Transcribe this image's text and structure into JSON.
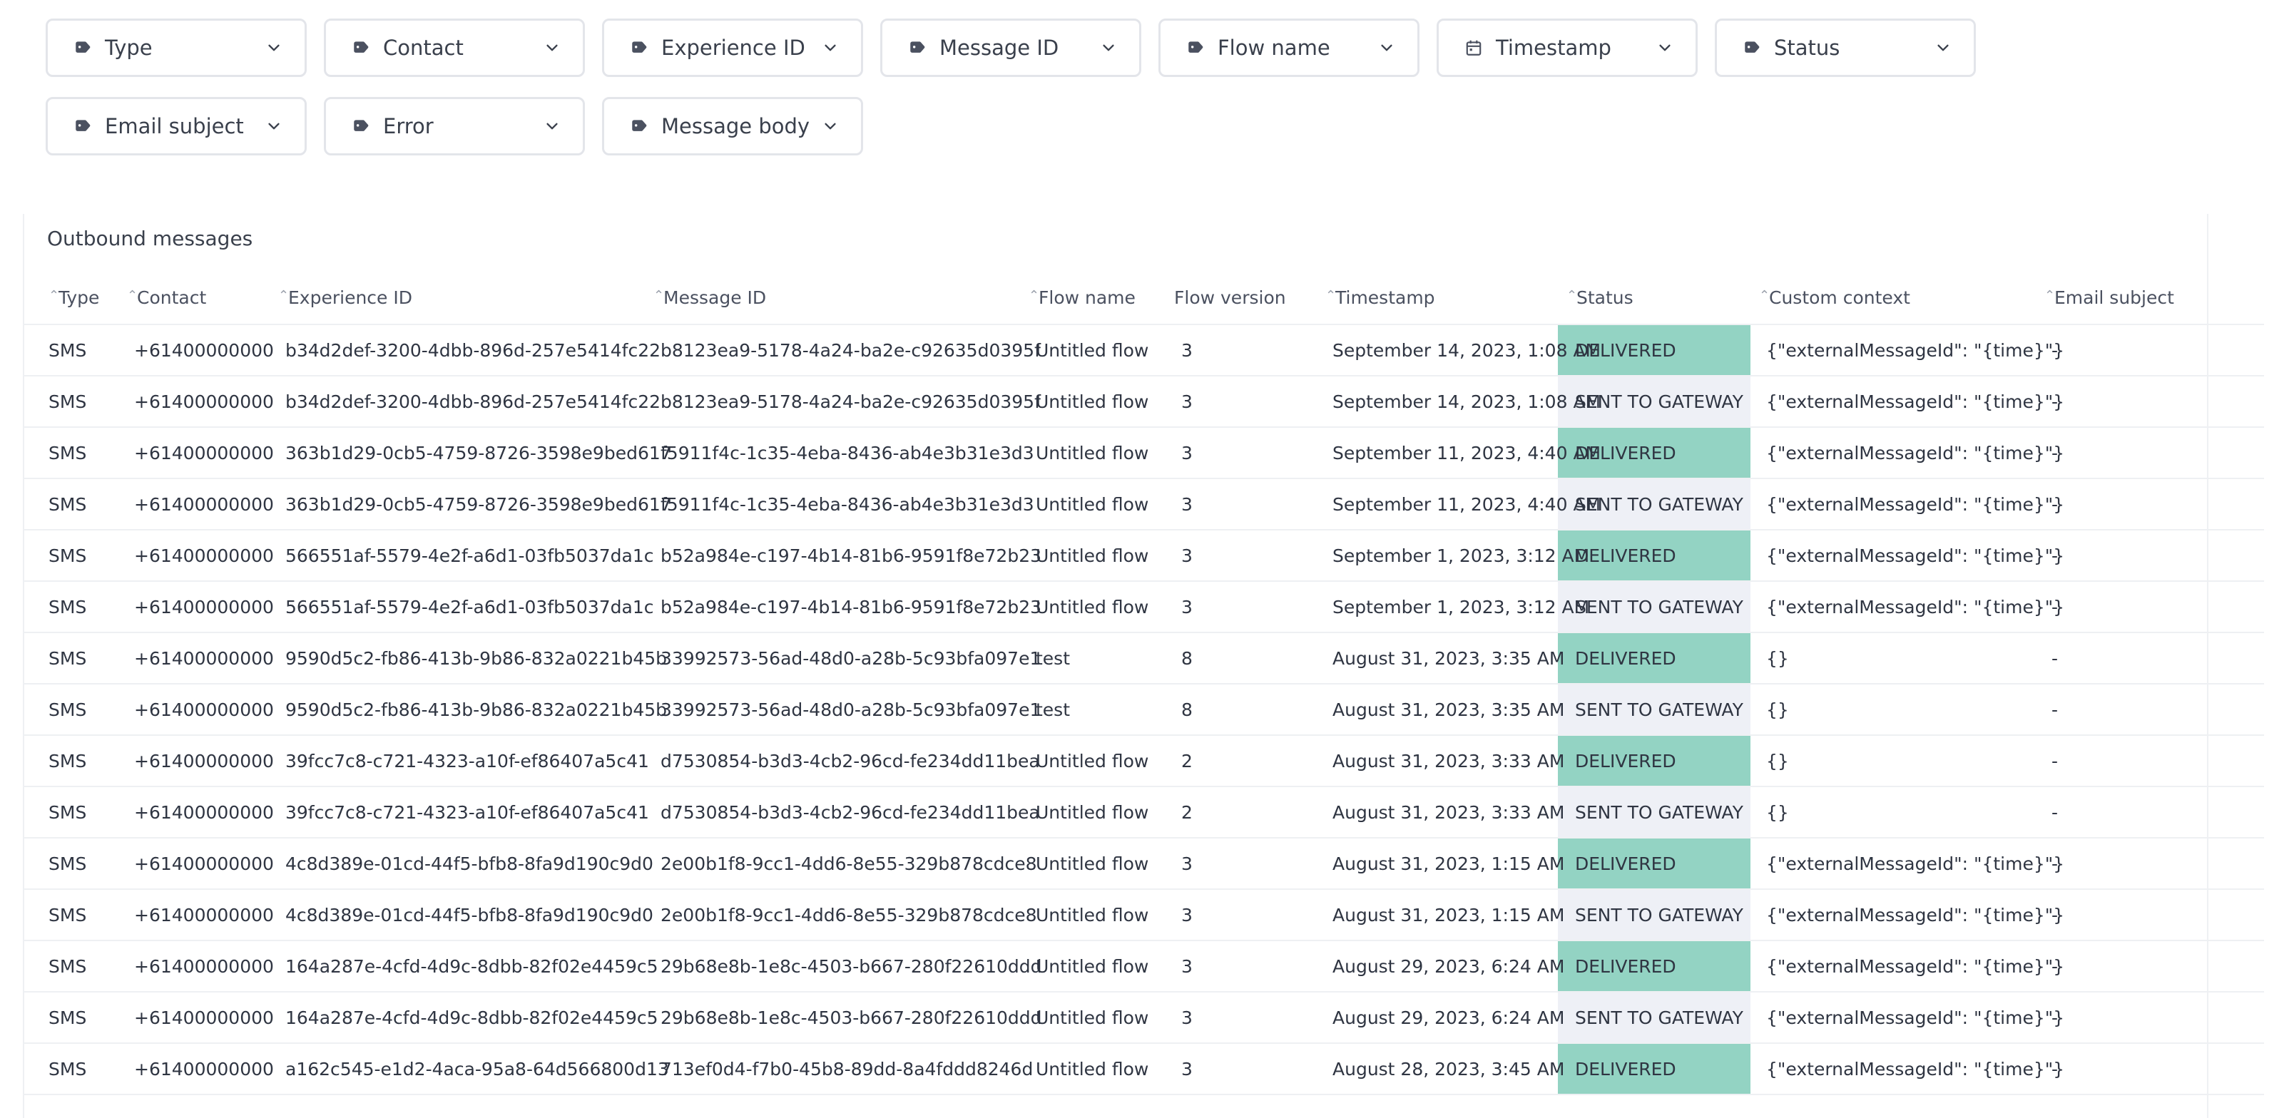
{
  "filters": {
    "row1": [
      {
        "label": "Type",
        "icon": "tag-icon"
      },
      {
        "label": "Contact",
        "icon": "tag-icon"
      },
      {
        "label": "Experience ID",
        "icon": "tag-icon"
      },
      {
        "label": "Message ID",
        "icon": "tag-icon"
      },
      {
        "label": "Flow name",
        "icon": "tag-icon"
      },
      {
        "label": "Timestamp",
        "icon": "calendar-icon"
      },
      {
        "label": "Status",
        "icon": "tag-icon"
      }
    ],
    "row2": [
      {
        "label": "Email subject",
        "icon": "tag-icon"
      },
      {
        "label": "Error",
        "icon": "tag-icon"
      },
      {
        "label": "Message body",
        "icon": "tag-icon"
      }
    ]
  },
  "table": {
    "title": "Outbound messages",
    "columns": [
      "Type",
      "Contact",
      "Experience ID",
      "Message ID",
      "Flow name",
      "Flow version",
      "Timestamp",
      "Status",
      "Custom context",
      "Email subject"
    ],
    "sortable": [
      true,
      true,
      true,
      true,
      true,
      false,
      true,
      true,
      true,
      true
    ],
    "rows": [
      [
        "SMS",
        "+61400000000",
        "b34d2def-3200-4dbb-896d-257e5414fc22",
        "b8123ea9-5178-4a24-ba2e-c92635d0395f",
        "Untitled flow",
        "3",
        "September 14, 2023, 1:08 AM",
        "DELIVERED",
        "{\"externalMessageId\": \"{time}\"}",
        "-"
      ],
      [
        "SMS",
        "+61400000000",
        "b34d2def-3200-4dbb-896d-257e5414fc22",
        "b8123ea9-5178-4a24-ba2e-c92635d0395f",
        "Untitled flow",
        "3",
        "September 14, 2023, 1:08 AM",
        "SENT TO GATEWAY",
        "{\"externalMessageId\": \"{time}\"}",
        "-"
      ],
      [
        "SMS",
        "+61400000000",
        "363b1d29-0cb5-4759-8726-3598e9bed617",
        "f5911f4c-1c35-4eba-8436-ab4e3b31e3d3",
        "Untitled flow",
        "3",
        "September 11, 2023, 4:40 AM",
        "DELIVERED",
        "{\"externalMessageId\": \"{time}\"}",
        "-"
      ],
      [
        "SMS",
        "+61400000000",
        "363b1d29-0cb5-4759-8726-3598e9bed617",
        "f5911f4c-1c35-4eba-8436-ab4e3b31e3d3",
        "Untitled flow",
        "3",
        "September 11, 2023, 4:40 AM",
        "SENT TO GATEWAY",
        "{\"externalMessageId\": \"{time}\"}",
        "-"
      ],
      [
        "SMS",
        "+61400000000",
        "566551af-5579-4e2f-a6d1-03fb5037da1c",
        "b52a984e-c197-4b14-81b6-9591f8e72b23",
        "Untitled flow",
        "3",
        "September 1, 2023, 3:12 AM",
        "DELIVERED",
        "{\"externalMessageId\": \"{time}\"}",
        "-"
      ],
      [
        "SMS",
        "+61400000000",
        "566551af-5579-4e2f-a6d1-03fb5037da1c",
        "b52a984e-c197-4b14-81b6-9591f8e72b23",
        "Untitled flow",
        "3",
        "September 1, 2023, 3:12 AM",
        "SENT TO GATEWAY",
        "{\"externalMessageId\": \"{time}\"}",
        "-"
      ],
      [
        "SMS",
        "+61400000000",
        "9590d5c2-fb86-413b-9b86-832a0221b45b",
        "33992573-56ad-48d0-a28b-5c93bfa097e1",
        "test",
        "8",
        "August 31, 2023, 3:35 AM",
        "DELIVERED",
        "{}",
        "-"
      ],
      [
        "SMS",
        "+61400000000",
        "9590d5c2-fb86-413b-9b86-832a0221b45b",
        "33992573-56ad-48d0-a28b-5c93bfa097e1",
        "test",
        "8",
        "August 31, 2023, 3:35 AM",
        "SENT TO GATEWAY",
        "{}",
        "-"
      ],
      [
        "SMS",
        "+61400000000",
        "39fcc7c8-c721-4323-a10f-ef86407a5c41",
        "d7530854-b3d3-4cb2-96cd-fe234dd11bea",
        "Untitled flow",
        "2",
        "August 31, 2023, 3:33 AM",
        "DELIVERED",
        "{}",
        "-"
      ],
      [
        "SMS",
        "+61400000000",
        "39fcc7c8-c721-4323-a10f-ef86407a5c41",
        "d7530854-b3d3-4cb2-96cd-fe234dd11bea",
        "Untitled flow",
        "2",
        "August 31, 2023, 3:33 AM",
        "SENT TO GATEWAY",
        "{}",
        "-"
      ],
      [
        "SMS",
        "+61400000000",
        "4c8d389e-01cd-44f5-bfb8-8fa9d190c9d0",
        "2e00b1f8-9cc1-4dd6-8e55-329b878cdce8",
        "Untitled flow",
        "3",
        "August 31, 2023, 1:15 AM",
        "DELIVERED",
        "{\"externalMessageId\": \"{time}\"}",
        "-"
      ],
      [
        "SMS",
        "+61400000000",
        "4c8d389e-01cd-44f5-bfb8-8fa9d190c9d0",
        "2e00b1f8-9cc1-4dd6-8e55-329b878cdce8",
        "Untitled flow",
        "3",
        "August 31, 2023, 1:15 AM",
        "SENT TO GATEWAY",
        "{\"externalMessageId\": \"{time}\"}",
        "-"
      ],
      [
        "SMS",
        "+61400000000",
        "164a287e-4cfd-4d9c-8dbb-82f02e4459c5",
        "29b68e8b-1e8c-4503-b667-280f22610ddd",
        "Untitled flow",
        "3",
        "August 29, 2023, 6:24 AM",
        "DELIVERED",
        "{\"externalMessageId\": \"{time}\"}",
        "-"
      ],
      [
        "SMS",
        "+61400000000",
        "164a287e-4cfd-4d9c-8dbb-82f02e4459c5",
        "29b68e8b-1e8c-4503-b667-280f22610ddd",
        "Untitled flow",
        "3",
        "August 29, 2023, 6:24 AM",
        "SENT TO GATEWAY",
        "{\"externalMessageId\": \"{time}\"}",
        "-"
      ],
      [
        "SMS",
        "+61400000000",
        "a162c545-e1d2-4aca-95a8-64d566800d13",
        "713ef0d4-f7b0-45b8-89dd-8a4fddd8246d",
        "Untitled flow",
        "3",
        "August 28, 2023, 3:45 AM",
        "DELIVERED",
        "{\"externalMessageId\": \"{time}\"}",
        "-"
      ]
    ]
  },
  "colors": {
    "delivered_bg": "#93d3c3",
    "sent_bg": "#eef0f6",
    "border": "#e3e5ea",
    "text": "#2f3542"
  }
}
